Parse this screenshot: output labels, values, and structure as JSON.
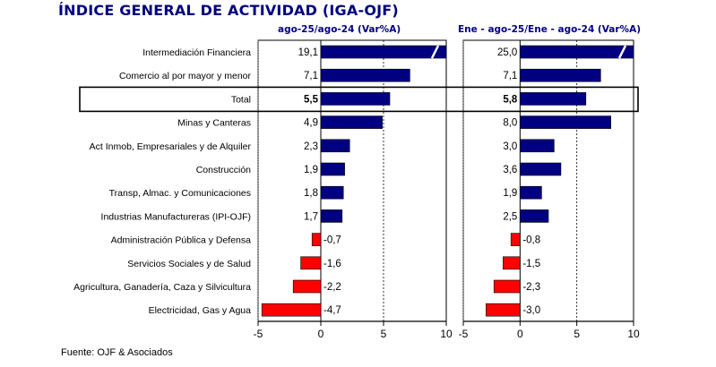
{
  "title": "ÍNDICE GENERAL DE ACTIVIDAD (IGA-OJF)",
  "source": "Fuente: OJF & Asociados",
  "colors": {
    "positive": "#000080",
    "negative": "#ff0000",
    "title": "#000080"
  },
  "chart_data": [
    {
      "type": "bar",
      "orientation": "horizontal",
      "title": "ago-25/ago-24  (Var%A)",
      "categories": [
        "Intermediación Financiera",
        "Comercio al por mayor y menor",
        "Total",
        "Minas y Canteras",
        "Act Inmob, Empresariales y de Alquiler",
        "Construcción",
        "Transp, Almac. y Comunicaciones",
        "Industrias Manufactureras (IPI-OJF)",
        "Administración Pública y Defensa",
        "Servicios Sociales y de Salud",
        "Agricultura, Ganadería, Caza y Silvicultura",
        "Electricidad, Gas y Agua"
      ],
      "values": [
        19.1,
        7.1,
        5.5,
        4.9,
        2.3,
        1.9,
        1.8,
        1.7,
        -0.7,
        -1.6,
        -2.2,
        -4.7
      ],
      "value_labels": [
        "19,1",
        "7,1",
        "5,5",
        "4,9",
        "2,3",
        "1,9",
        "1,8",
        "1,7",
        "-0,7",
        "-1,6",
        "-2,2",
        "-4,7"
      ],
      "highlight_category": "Total",
      "truncated_categories": [
        "Intermediación Financiera"
      ],
      "xlim": [
        -5,
        10
      ],
      "xticks": [
        -5,
        0,
        5,
        10
      ],
      "xtick_labels": [
        "-5",
        "0",
        "5",
        "10"
      ],
      "grid": "vertical dashed at 5"
    },
    {
      "type": "bar",
      "orientation": "horizontal",
      "title": "Ene - ago-25/Ene - ago-24  (Var%A)",
      "categories": [
        "Intermediación Financiera",
        "Comercio al por mayor y menor",
        "Total",
        "Minas y Canteras",
        "Act Inmob, Empresariales y de Alquiler",
        "Construcción",
        "Transp, Almac. y Comunicaciones",
        "Industrias Manufactureras (IPI-OJF)",
        "Administración Pública y Defensa",
        "Servicios Sociales y de Salud",
        "Agricultura, Ganadería, Caza y Silvicultura",
        "Electricidad, Gas y Agua"
      ],
      "values": [
        25.0,
        7.1,
        5.8,
        8.0,
        3.0,
        3.6,
        1.9,
        2.5,
        -0.8,
        -1.5,
        -2.3,
        -3.0
      ],
      "value_labels": [
        "25,0",
        "7,1",
        "5,8",
        "8,0",
        "3,0",
        "3,6",
        "1,9",
        "2,5",
        "-0,8",
        "-1,5",
        "-2,3",
        "-3,0"
      ],
      "highlight_category": "Total",
      "truncated_categories": [
        "Intermediación Financiera"
      ],
      "xlim": [
        -5,
        10
      ],
      "xticks": [
        -5,
        0,
        5,
        10
      ],
      "xtick_labels": [
        "-5",
        "0",
        "5",
        "10"
      ],
      "grid": "vertical dashed at 5"
    }
  ]
}
